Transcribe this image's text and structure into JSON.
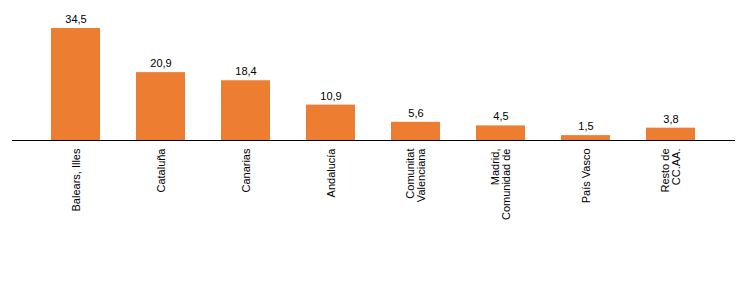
{
  "chart_data": {
    "type": "bar",
    "categories": [
      "Balears, Illes",
      "Cataluña",
      "Canarias",
      "Andalucía",
      "Comunitat\nValenciana",
      "Madrid,\nComunidad de",
      "País Vasco",
      "Resto de\nCC.AA."
    ],
    "values": [
      34.5,
      20.9,
      18.4,
      10.9,
      5.6,
      4.5,
      1.5,
      3.8
    ],
    "value_labels": [
      "34,5",
      "20,9",
      "18,4",
      "10,9",
      "5,6",
      "4,5",
      "1,5",
      "3,8"
    ],
    "color": "#ed7d31",
    "ylim": [
      0,
      34.5
    ],
    "grid": false,
    "data_labels": true,
    "tick_labels": "x"
  }
}
